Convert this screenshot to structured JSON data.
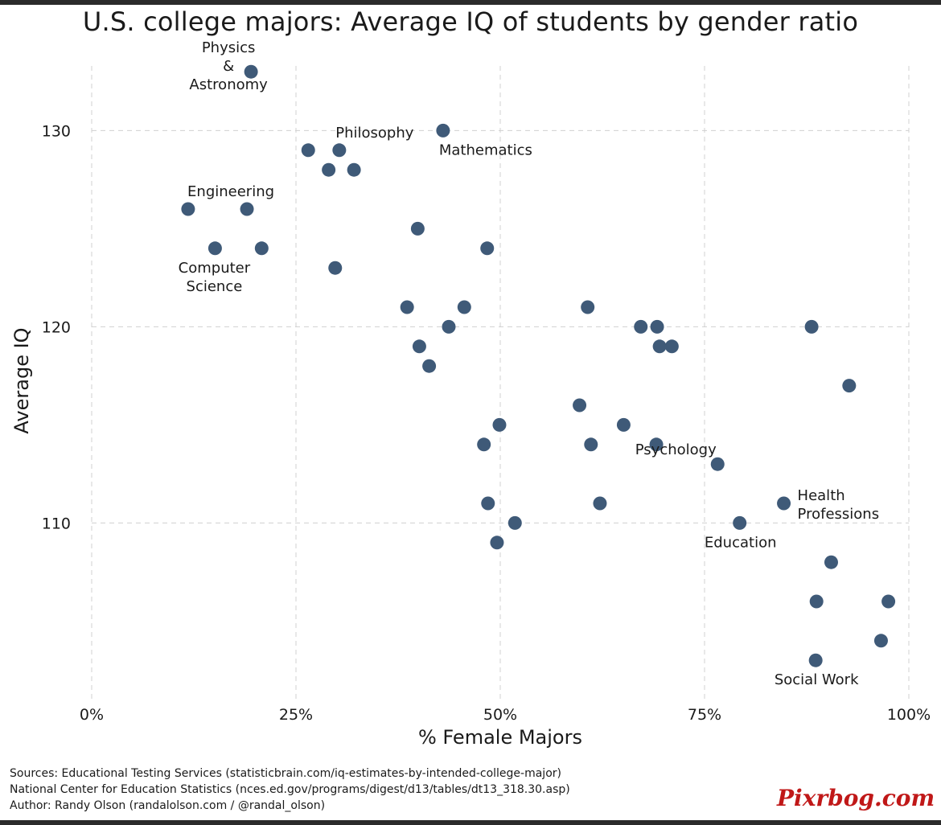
{
  "title": "U.S. college majors: Average IQ of students by gender ratio",
  "sources": {
    "line1": "Sources: Educational Testing Services (statisticbrain.com/iq-estimates-by-intended-college-major)",
    "line2": "National Center for Education Statistics (nces.ed.gov/programs/digest/d13/tables/dt13_318.30.asp)",
    "line3": "Author: Randy Olson (randalolson.com / @randal_olson)"
  },
  "watermark": "Pixrbog.com",
  "colors": {
    "point": "#3f5a78",
    "grid": "#d0d0d0",
    "text": "#1a1a1a"
  },
  "chart_data": {
    "type": "scatter",
    "title": "U.S. college majors: Average IQ of students by gender ratio",
    "xlabel": "% Female Majors",
    "ylabel": "Average IQ",
    "xlim": [
      0,
      1
    ],
    "ylim": [
      101,
      133.5
    ],
    "x_ticks": [
      0,
      0.25,
      0.5,
      0.75,
      1
    ],
    "x_tick_labels": [
      "0%",
      "25%",
      "50%",
      "75%",
      "100%"
    ],
    "y_ticks": [
      110,
      120,
      130
    ],
    "y_tick_labels": [
      "110",
      "120",
      "130"
    ],
    "grid": true,
    "points": [
      {
        "x": 0.195,
        "y": 133
      },
      {
        "x": 0.43,
        "y": 130
      },
      {
        "x": 0.265,
        "y": 129
      },
      {
        "x": 0.303,
        "y": 129
      },
      {
        "x": 0.29,
        "y": 128
      },
      {
        "x": 0.321,
        "y": 128
      },
      {
        "x": 0.118,
        "y": 126
      },
      {
        "x": 0.19,
        "y": 126
      },
      {
        "x": 0.399,
        "y": 125
      },
      {
        "x": 0.151,
        "y": 124
      },
      {
        "x": 0.208,
        "y": 124
      },
      {
        "x": 0.484,
        "y": 124
      },
      {
        "x": 0.298,
        "y": 123
      },
      {
        "x": 0.386,
        "y": 121
      },
      {
        "x": 0.456,
        "y": 121
      },
      {
        "x": 0.607,
        "y": 121
      },
      {
        "x": 0.437,
        "y": 120
      },
      {
        "x": 0.672,
        "y": 120
      },
      {
        "x": 0.692,
        "y": 120
      },
      {
        "x": 0.881,
        "y": 120
      },
      {
        "x": 0.401,
        "y": 119
      },
      {
        "x": 0.695,
        "y": 119
      },
      {
        "x": 0.71,
        "y": 119
      },
      {
        "x": 0.413,
        "y": 118
      },
      {
        "x": 0.927,
        "y": 117
      },
      {
        "x": 0.597,
        "y": 116
      },
      {
        "x": 0.499,
        "y": 115
      },
      {
        "x": 0.651,
        "y": 115
      },
      {
        "x": 0.48,
        "y": 114
      },
      {
        "x": 0.611,
        "y": 114
      },
      {
        "x": 0.691,
        "y": 114
      },
      {
        "x": 0.766,
        "y": 113
      },
      {
        "x": 0.485,
        "y": 111
      },
      {
        "x": 0.622,
        "y": 111
      },
      {
        "x": 0.847,
        "y": 111
      },
      {
        "x": 0.518,
        "y": 110
      },
      {
        "x": 0.793,
        "y": 110
      },
      {
        "x": 0.496,
        "y": 109
      },
      {
        "x": 0.905,
        "y": 108
      },
      {
        "x": 0.887,
        "y": 106
      },
      {
        "x": 0.975,
        "y": 106
      },
      {
        "x": 0.966,
        "y": 104
      },
      {
        "x": 0.886,
        "y": 103
      }
    ],
    "annotations": [
      {
        "lines": [
          "Physics",
          "&",
          "Astronomy"
        ],
        "x": 0.195,
        "y": 133,
        "pos": "around"
      },
      {
        "lines": [
          "Philosophy"
        ],
        "x": 0.303,
        "y": 129,
        "pos": "above"
      },
      {
        "lines": [
          "Mathematics"
        ],
        "x": 0.43,
        "y": 130,
        "pos": "below-right"
      },
      {
        "lines": [
          "Engineering"
        ],
        "x": 0.19,
        "y": 126,
        "pos": "above"
      },
      {
        "lines": [
          "Computer",
          "Science"
        ],
        "x": 0.151,
        "y": 124,
        "pos": "below"
      },
      {
        "lines": [
          "Psychology"
        ],
        "x": 0.766,
        "y": 113,
        "pos": "above-left"
      },
      {
        "lines": [
          "Health",
          "Professions"
        ],
        "x": 0.847,
        "y": 111,
        "pos": "right"
      },
      {
        "lines": [
          "Education"
        ],
        "x": 0.793,
        "y": 110,
        "pos": "below"
      },
      {
        "lines": [
          "Social Work"
        ],
        "x": 0.886,
        "y": 103,
        "pos": "below"
      }
    ]
  }
}
